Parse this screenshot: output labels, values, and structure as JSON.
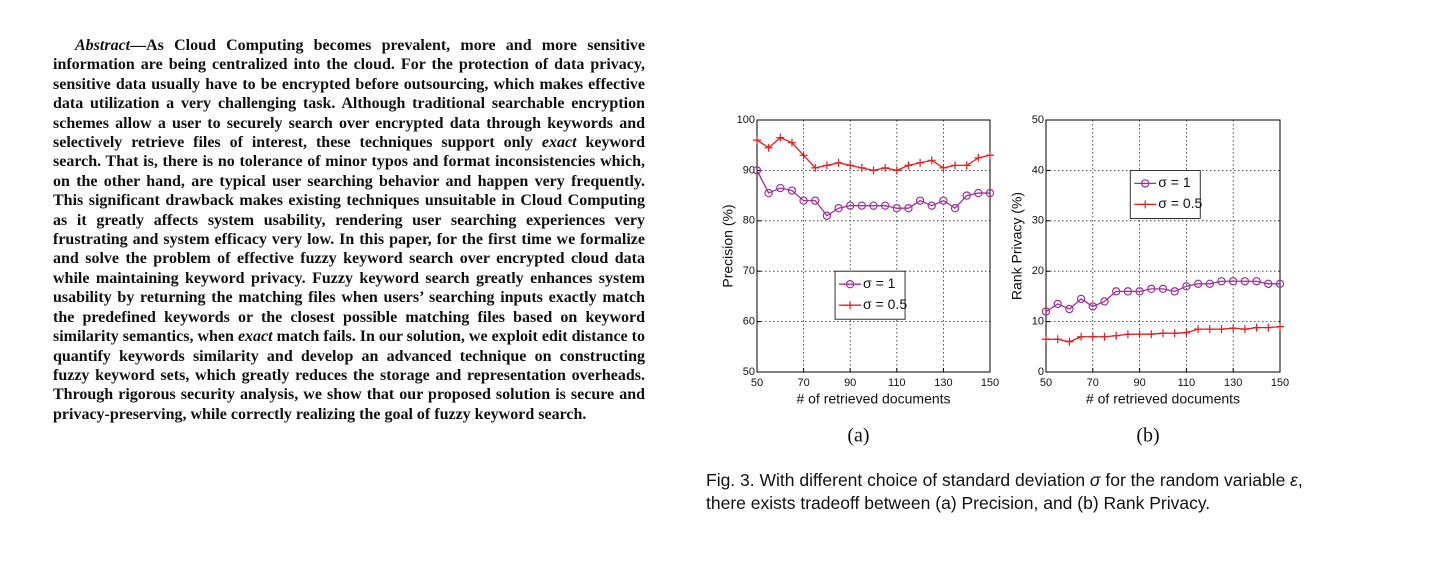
{
  "abstract": [
    {
      "text": "Abstract",
      "italic": true
    },
    {
      "text": "—As Cloud Computing becomes prevalent, more and more sensitive information are being centralized into the cloud. For the protection of data privacy, sensitive data usually have to be encrypted before outsourcing, which makes effective data utilization a very challenging task. Although traditional searchable encryption schemes allow a user to securely search over encrypted data through keywords and selectively retrieve files of interest, these techniques support only "
    },
    {
      "text": "exact",
      "italic": true
    },
    {
      "text": " keyword search. That is, there is no tolerance of minor typos and format inconsistencies which, on the other hand, are typical user searching behavior and happen very frequently. This significant drawback makes existing techniques unsuitable in Cloud Computing as it greatly affects system usability, rendering user searching experiences very frustrating and system efficacy very low. In this paper, for the first time we formalize and solve the problem of effective fuzzy keyword search over encrypted cloud data while maintaining keyword privacy. Fuzzy keyword search greatly enhances system usability by returning the matching files when users’ searching inputs exactly match the predefined keywords or the closest possible matching files based on keyword similarity semantics, when "
    },
    {
      "text": "exact",
      "italic": true
    },
    {
      "text": " match fails. In our solution, we exploit edit distance to quantify keywords similarity and develop an advanced technique on constructing fuzzy keyword sets, which greatly reduces the storage and representation overheads. Through rigorous security analysis, we show that our proposed solution is secure and privacy-preserving, while correctly realizing the goal of fuzzy keyword search."
    }
  ],
  "caption": [
    {
      "text": "Fig. 3. With different choice of standard deviation "
    },
    {
      "text": "σ",
      "italic": true
    },
    {
      "text": " for the random variable "
    },
    {
      "text": "ε",
      "italic": true
    },
    {
      "text": ", there exists tradeoff between (a) Precision, and (b) Rank Privacy."
    }
  ],
  "chart_data": [
    {
      "type": "line",
      "panel_label": "(a)",
      "xlabel": "# of retrieved documents",
      "ylabel": "Precision (%)",
      "x": [
        50,
        55,
        60,
        65,
        70,
        75,
        80,
        85,
        90,
        95,
        100,
        105,
        110,
        115,
        120,
        125,
        130,
        135,
        140,
        145,
        150
      ],
      "xlim": [
        50,
        150
      ],
      "xticks": [
        50,
        70,
        90,
        110,
        130,
        150
      ],
      "ylim": [
        50,
        100
      ],
      "yticks": [
        50,
        60,
        70,
        80,
        90,
        100
      ],
      "grid": true,
      "legend_loc": "lower center",
      "series": [
        {
          "name": "σ = 1",
          "color": "#a0309a",
          "marker": "o",
          "values": [
            90,
            85.5,
            86.5,
            86,
            84,
            84,
            81,
            82.5,
            83,
            83,
            83,
            83,
            82.5,
            82.5,
            84,
            83,
            84,
            82.5,
            85,
            85.5,
            85.5
          ]
        },
        {
          "name": "σ = 0.5",
          "color": "#e02020",
          "marker": "+",
          "values": [
            96,
            94.5,
            96.5,
            95.5,
            93,
            90.5,
            91,
            91.5,
            91,
            90.5,
            90,
            90.5,
            90,
            91,
            91.5,
            92,
            90.5,
            91,
            91,
            92.5,
            93
          ]
        }
      ]
    },
    {
      "type": "line",
      "panel_label": "(b)",
      "xlabel": "# of retrieved documents",
      "ylabel": "Rank Privacy (%)",
      "x": [
        50,
        55,
        60,
        65,
        70,
        75,
        80,
        85,
        90,
        95,
        100,
        105,
        110,
        115,
        120,
        125,
        130,
        135,
        140,
        145,
        150
      ],
      "xlim": [
        50,
        150
      ],
      "xticks": [
        50,
        70,
        90,
        110,
        130,
        150
      ],
      "ylim": [
        0,
        50
      ],
      "yticks": [
        0,
        10,
        20,
        30,
        40,
        50
      ],
      "grid": true,
      "legend_loc": "upper left",
      "series": [
        {
          "name": "σ = 1",
          "color": "#a0309a",
          "marker": "o",
          "values": [
            12,
            13.5,
            12.5,
            14.5,
            13,
            14,
            16,
            16,
            16,
            16.5,
            16.5,
            16,
            17,
            17.5,
            17.5,
            18,
            18,
            18,
            18,
            17.5,
            17.5
          ]
        },
        {
          "name": "σ = 0.5",
          "color": "#e02020",
          "marker": "+",
          "values": [
            6.5,
            6.5,
            6,
            7,
            7,
            7,
            7.2,
            7.5,
            7.5,
            7.5,
            7.7,
            7.7,
            7.8,
            8.5,
            8.5,
            8.5,
            8.7,
            8.5,
            8.8,
            8.8,
            9
          ]
        }
      ]
    }
  ]
}
